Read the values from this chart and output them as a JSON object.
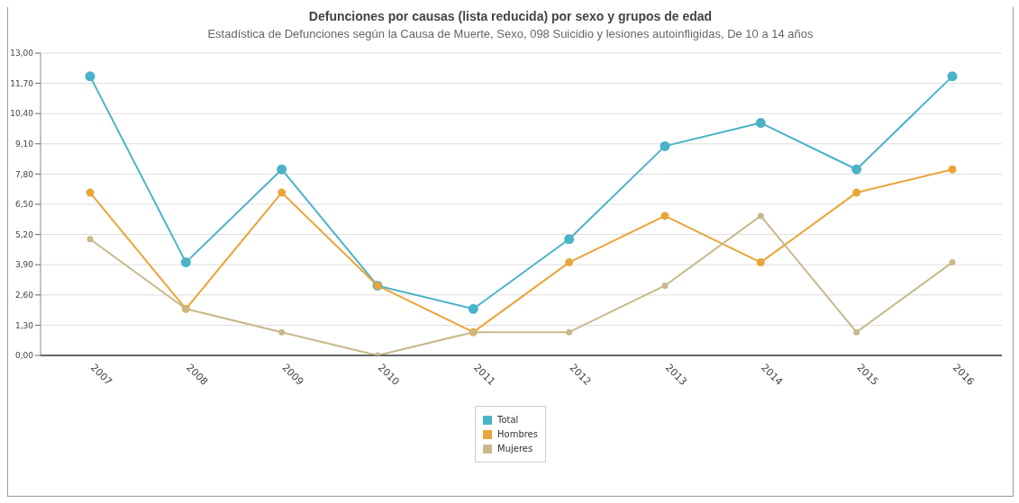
{
  "chart_data": {
    "type": "line",
    "title": "Defunciones por causas (lista reducida) por sexo y grupos de edad",
    "subtitle": "Estadística de Defunciones según la Causa de Muerte, Sexo, 098  Suicidio y lesiones autoinfligidas, De 10 a 14 años",
    "categories": [
      "2007",
      "2008",
      "2009",
      "2010",
      "2011",
      "2012",
      "2013",
      "2014",
      "2015",
      "2016"
    ],
    "series": [
      {
        "name": "Total",
        "color": "#4bb3c8",
        "values": [
          12,
          4,
          8,
          3,
          2,
          5,
          9,
          10,
          8,
          12
        ]
      },
      {
        "name": "Hombres",
        "color": "#e9a53a",
        "values": [
          7,
          2,
          7,
          3,
          1,
          4,
          6,
          4,
          7,
          8
        ]
      },
      {
        "name": "Mujeres",
        "color": "#c7b98a",
        "values": [
          5,
          2,
          1,
          0,
          1,
          1,
          3,
          6,
          1,
          4
        ]
      }
    ],
    "ylim": [
      0,
      13
    ],
    "yticks": [
      {
        "value": 0,
        "label": "0,00"
      },
      {
        "value": 1.3,
        "label": "1,30"
      },
      {
        "value": 2.6,
        "label": "2,60"
      },
      {
        "value": 3.9,
        "label": "3,90"
      },
      {
        "value": 5.2,
        "label": "5,20"
      },
      {
        "value": 6.5,
        "label": "6,50"
      },
      {
        "value": 7.8,
        "label": "7,80"
      },
      {
        "value": 9.1,
        "label": "9,10"
      },
      {
        "value": 10.4,
        "label": "10,40"
      },
      {
        "value": 11.7,
        "label": "11,70"
      },
      {
        "value": 13,
        "label": "13,00"
      }
    ],
    "grid": "y",
    "legend": "bottom",
    "marker": "circle",
    "line_style": "solid"
  }
}
